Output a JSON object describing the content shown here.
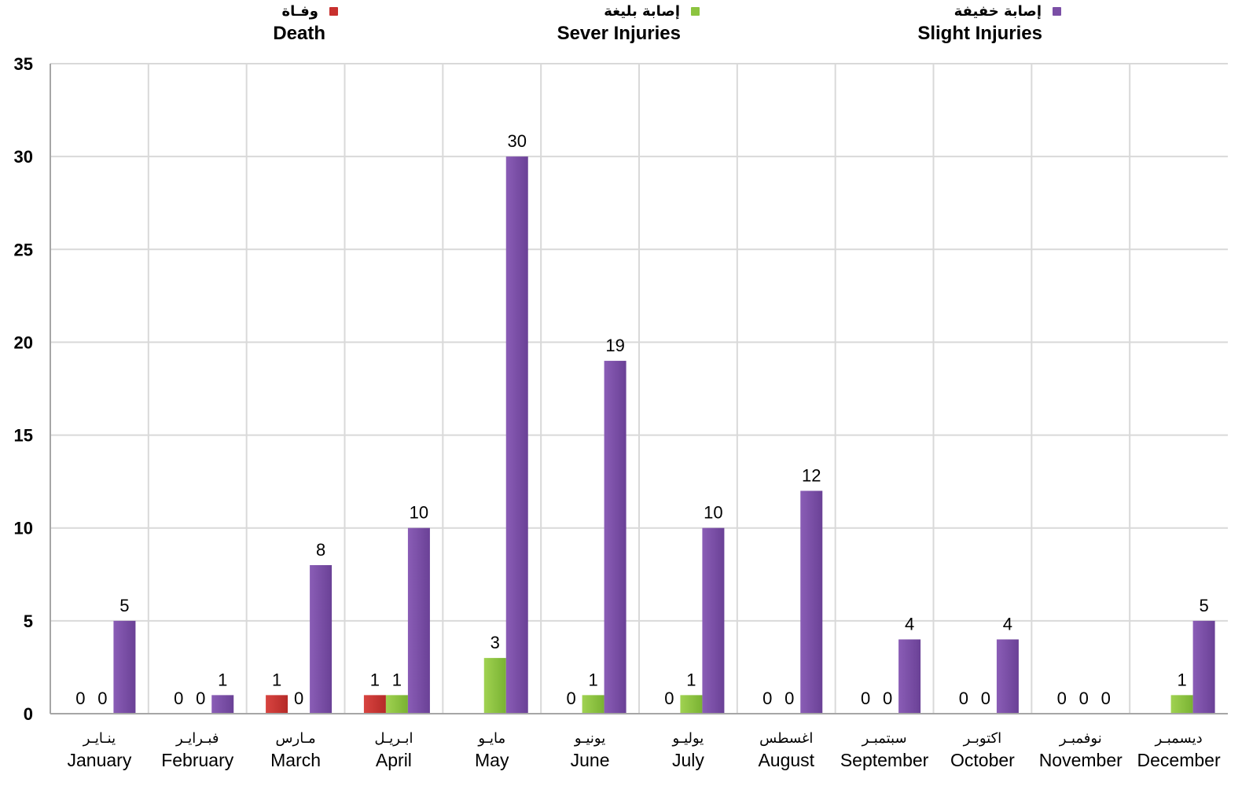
{
  "chart_data": {
    "type": "bar",
    "categories": [
      "January",
      "February",
      "March",
      "April",
      "May",
      "June",
      "July",
      "August",
      "September",
      "October",
      "November",
      "December"
    ],
    "categories_ar": [
      "ينـايـر",
      "فبـرايـر",
      "مـارس",
      "ابـريـل",
      "مايـو",
      "يونيـو",
      "يوليـو",
      "اغسطس",
      "سبتمبـر",
      "اكتوبـر",
      "نوفمبـر",
      "ديسمبـر"
    ],
    "series": [
      {
        "name": "Death",
        "name_ar": "وفـاة",
        "color": "#c8302e",
        "values": [
          0,
          0,
          1,
          1,
          0,
          0,
          0,
          0,
          0,
          0,
          0,
          0
        ],
        "labels": [
          "0",
          "0",
          "1",
          "1",
          "",
          "0",
          "0",
          "0",
          "0",
          "0",
          "0",
          ""
        ]
      },
      {
        "name": "Sever Injuries",
        "name_ar": "إصابة بليغة",
        "color": "#8cc43f",
        "values": [
          0,
          0,
          0,
          1,
          3,
          1,
          1,
          0,
          0,
          0,
          0,
          1
        ],
        "labels": [
          "0",
          "0",
          "0",
          "1",
          "3",
          "1",
          "1",
          "0",
          "0",
          "0",
          "0",
          "1"
        ]
      },
      {
        "name": "Slight Injuries",
        "name_ar": "إصابة خفيفة",
        "color": "#7b4fa6",
        "values": [
          5,
          1,
          8,
          10,
          30,
          19,
          10,
          12,
          4,
          4,
          0,
          5
        ],
        "labels": [
          "5",
          "1",
          "8",
          "10",
          "30",
          "19",
          "10",
          "12",
          "4",
          "4",
          "0",
          "5"
        ]
      }
    ],
    "ylim": [
      0,
      35
    ],
    "yticks": [
      0,
      5,
      10,
      15,
      20,
      25,
      30,
      35
    ],
    "grid": true,
    "legend_position": "top"
  }
}
